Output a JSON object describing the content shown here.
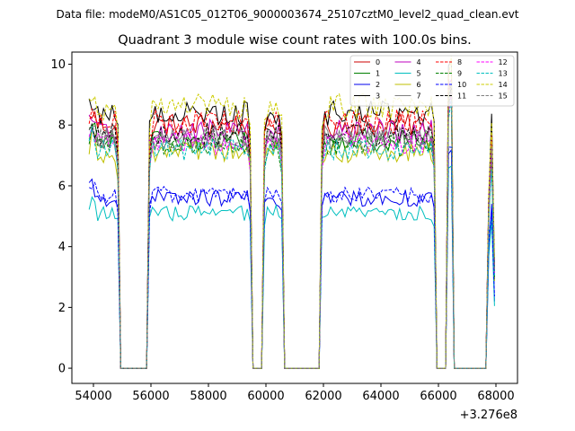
{
  "chart_data": {
    "type": "line",
    "suptitle": "Data file: modeM0/AS1C05_012T06_9000003674_25107cztM0_level2_quad_clean.evt",
    "title": "Quadrant 3 module wise count rates with 100.0s bins.",
    "xlabel": "",
    "ylabel": "",
    "offset_label": "+3.276e8",
    "xlim": [
      53250,
      68750
    ],
    "ylim": [
      -0.5,
      10.4
    ],
    "xticks": [
      54000,
      56000,
      58000,
      60000,
      62000,
      64000,
      66000,
      68000
    ],
    "xtick_labels": [
      "54000",
      "56000",
      "58000",
      "60000",
      "62000",
      "64000",
      "66000",
      "68000"
    ],
    "yticks": [
      0,
      2,
      4,
      6,
      8,
      10
    ],
    "ytick_labels": [
      "0",
      "2",
      "4",
      "6",
      "8",
      "10"
    ],
    "legend_position": "upper-right",
    "bin_width_s": 100,
    "segments": [
      {
        "start": 53850,
        "end": 54850
      },
      {
        "start": 55950,
        "end": 59450
      },
      {
        "start": 59950,
        "end": 60550
      },
      {
        "start": 61950,
        "end": 65850
      },
      {
        "start": 66350,
        "end": 66450
      },
      {
        "start": 67750,
        "end": 67950
      }
    ],
    "gap_level": 0.0,
    "series": [
      {
        "name": "0",
        "color": "#cc0000",
        "dash": "solid",
        "level": 8.0
      },
      {
        "name": "1",
        "color": "#007f00",
        "dash": "solid",
        "level": 7.5
      },
      {
        "name": "2",
        "color": "#0000ee",
        "dash": "solid",
        "level": 5.6
      },
      {
        "name": "3",
        "color": "#000000",
        "dash": "solid",
        "level": 8.4
      },
      {
        "name": "4",
        "color": "#bf00bf",
        "dash": "solid",
        "level": 7.8
      },
      {
        "name": "5",
        "color": "#00bfbf",
        "dash": "solid",
        "level": 5.1
      },
      {
        "name": "6",
        "color": "#bfbf00",
        "dash": "solid",
        "level": 7.1
      },
      {
        "name": "7",
        "color": "#808080",
        "dash": "solid",
        "level": 7.6
      },
      {
        "name": "8",
        "color": "#ff0000",
        "dash": "dashed",
        "level": 8.1
      },
      {
        "name": "9",
        "color": "#008000",
        "dash": "dashed",
        "level": 7.3
      },
      {
        "name": "10",
        "color": "#0000ff",
        "dash": "dashed",
        "level": 5.7
      },
      {
        "name": "11",
        "color": "#000000",
        "dash": "dashed",
        "level": 7.7
      },
      {
        "name": "12",
        "color": "#ff00ff",
        "dash": "dashed",
        "level": 7.4
      },
      {
        "name": "13",
        "color": "#00bfbf",
        "dash": "dashed",
        "level": 7.2
      },
      {
        "name": "14",
        "color": "#cccc00",
        "dash": "dashed",
        "level": 8.6
      },
      {
        "name": "15",
        "color": "#808080",
        "dash": "dashed",
        "level": 7.5
      }
    ]
  }
}
